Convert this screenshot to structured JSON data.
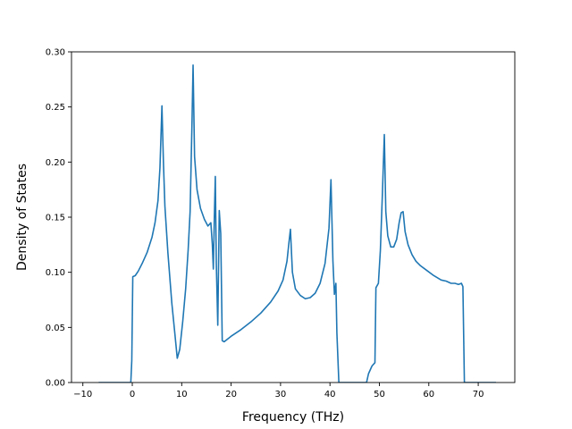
{
  "chart_data": {
    "type": "line",
    "title": "",
    "xlabel": "Frequency (THz)",
    "ylabel": "Density of States",
    "xlim": [
      -12.3,
      77.4
    ],
    "ylim": [
      0,
      0.3
    ],
    "xticks": [
      -10,
      0,
      10,
      20,
      30,
      40,
      50,
      60,
      70
    ],
    "xtick_labels": [
      "−10",
      "0",
      "10",
      "20",
      "30",
      "40",
      "50",
      "60",
      "70"
    ],
    "yticks": [
      0.0,
      0.05,
      0.1,
      0.15,
      0.2,
      0.25,
      0.3
    ],
    "ytick_labels": [
      "0.00",
      "0.05",
      "0.10",
      "0.15",
      "0.20",
      "0.25",
      "0.30"
    ],
    "grid": false,
    "legend": "none",
    "series": [
      {
        "color": "#1f77b4",
        "x": [
          -6.8,
          -0.3,
          -0.1,
          0.1,
          0.6,
          1.2,
          2.0,
          3.0,
          4.0,
          4.6,
          5.2,
          5.6,
          6.0,
          6.3,
          6.6,
          7.2,
          8.0,
          8.6,
          9.1,
          9.6,
          10.2,
          10.8,
          11.3,
          11.7,
          12.1,
          12.3,
          12.6,
          13.1,
          13.8,
          14.6,
          15.3,
          15.9,
          16.2,
          16.4,
          16.6,
          16.8,
          17.0,
          17.3,
          17.6,
          17.9,
          18.2,
          18.6,
          20.0,
          22.0,
          24.0,
          26.0,
          28.0,
          29.5,
          30.5,
          31.3,
          31.7,
          32.0,
          32.4,
          33.0,
          34.0,
          35.0,
          36.0,
          37.0,
          38.0,
          39.0,
          39.8,
          40.2,
          40.6,
          40.9,
          41.2,
          41.4,
          41.8,
          45.0,
          47.4,
          47.8,
          48.5,
          49.1,
          49.3,
          49.8,
          50.2,
          50.6,
          51.0,
          51.3,
          51.7,
          52.3,
          52.9,
          53.5,
          54.0,
          54.4,
          54.8,
          55.2,
          55.8,
          56.6,
          57.4,
          58.3,
          59.5,
          61.0,
          62.5,
          63.5,
          64.5,
          65.3,
          66.0,
          66.6,
          66.9,
          67.2,
          68.0,
          73.6
        ],
        "y": [
          0.0,
          0.0,
          0.02,
          0.096,
          0.097,
          0.101,
          0.108,
          0.118,
          0.132,
          0.145,
          0.165,
          0.195,
          0.251,
          0.2,
          0.16,
          0.118,
          0.072,
          0.045,
          0.022,
          0.03,
          0.055,
          0.085,
          0.12,
          0.155,
          0.24,
          0.288,
          0.205,
          0.175,
          0.158,
          0.148,
          0.142,
          0.145,
          0.125,
          0.103,
          0.15,
          0.187,
          0.108,
          0.052,
          0.156,
          0.135,
          0.038,
          0.037,
          0.042,
          0.048,
          0.055,
          0.063,
          0.073,
          0.083,
          0.093,
          0.11,
          0.127,
          0.139,
          0.1,
          0.085,
          0.079,
          0.076,
          0.077,
          0.081,
          0.09,
          0.108,
          0.14,
          0.184,
          0.11,
          0.08,
          0.09,
          0.045,
          0.0,
          0.0,
          0.0,
          0.008,
          0.015,
          0.018,
          0.086,
          0.09,
          0.12,
          0.17,
          0.225,
          0.155,
          0.133,
          0.123,
          0.123,
          0.13,
          0.145,
          0.154,
          0.155,
          0.137,
          0.125,
          0.116,
          0.11,
          0.106,
          0.102,
          0.097,
          0.093,
          0.092,
          0.09,
          0.09,
          0.089,
          0.09,
          0.087,
          0.0,
          0.0,
          0.0
        ]
      }
    ]
  }
}
